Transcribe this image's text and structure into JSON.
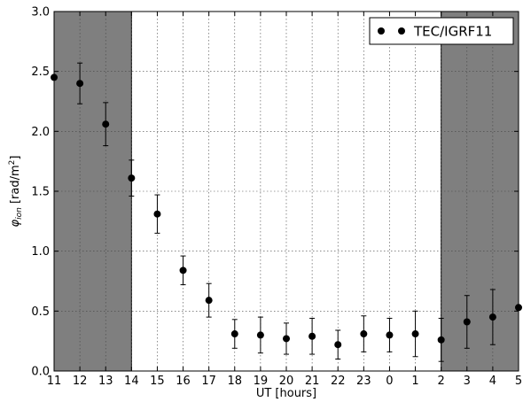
{
  "chart_data": {
    "type": "scatter",
    "xlabel": "UT [hours]",
    "ylabel": "φ_ion [rad/m²]",
    "ylim": [
      0,
      3
    ],
    "grid": true,
    "legend_position": "top-right",
    "categories": [
      "11",
      "12",
      "13",
      "14",
      "15",
      "16",
      "17",
      "18",
      "19",
      "20",
      "21",
      "22",
      "23",
      "0",
      "1",
      "2",
      "3",
      "4",
      "5"
    ],
    "yticks": [
      "0.0",
      "0.5",
      "1.0",
      "1.5",
      "2.0",
      "2.5",
      "3.0"
    ],
    "shaded_ranges": [
      {
        "from": "11",
        "to": "14"
      },
      {
        "from": "2",
        "to": "5"
      }
    ],
    "series": [
      {
        "name": "TEC/IGRF11",
        "color": "#000000",
        "x": [
          "11",
          "12",
          "13",
          "14",
          "15",
          "16",
          "17",
          "18",
          "19",
          "20",
          "21",
          "22",
          "23",
          "0",
          "1",
          "2",
          "3",
          "4",
          "5"
        ],
        "values": [
          2.45,
          2.4,
          2.06,
          1.61,
          1.31,
          0.84,
          0.59,
          0.31,
          0.3,
          0.27,
          0.29,
          0.22,
          0.31,
          0.3,
          0.31,
          0.26,
          0.41,
          0.45,
          0.53
        ],
        "error": [
          0.0,
          0.17,
          0.18,
          0.15,
          0.16,
          0.12,
          0.14,
          0.12,
          0.15,
          0.13,
          0.15,
          0.12,
          0.15,
          0.14,
          0.19,
          0.18,
          0.22,
          0.23,
          0.0
        ]
      }
    ]
  }
}
